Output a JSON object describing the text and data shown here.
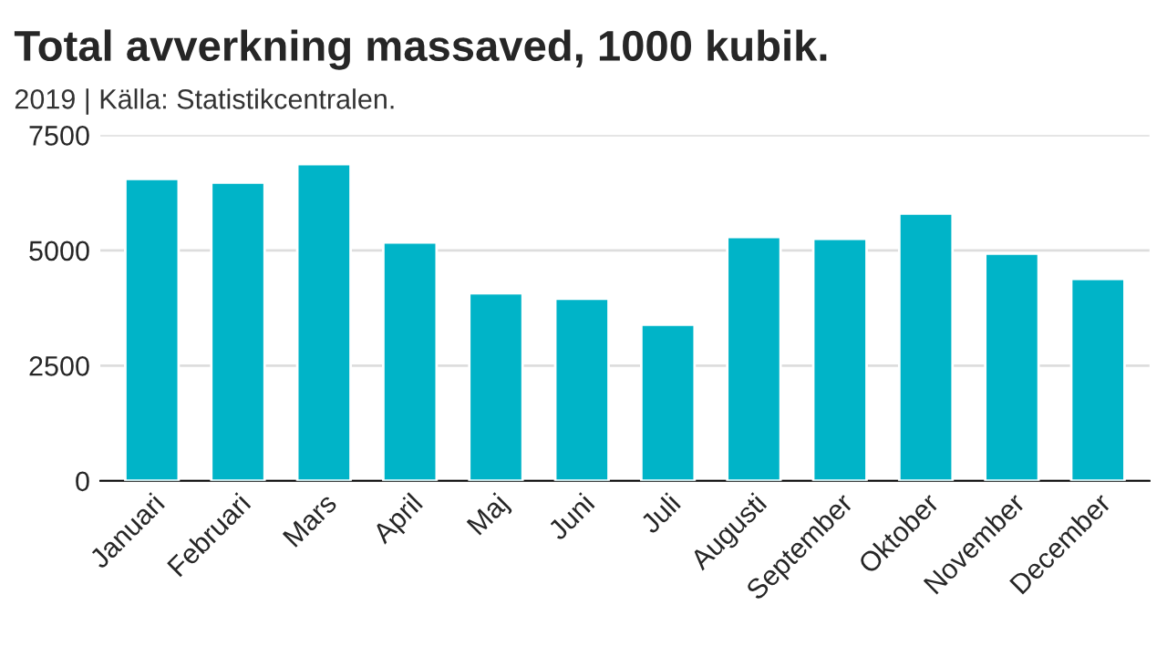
{
  "chart_data": {
    "type": "bar",
    "title": "Total avverkning massaved, 1000 kubik.",
    "subtitle": "2019 | Källa: Statistikcentralen.",
    "categories": [
      "Januari",
      "Februari",
      "Mars",
      "April",
      "Maj",
      "Juni",
      "Juli",
      "Augusti",
      "September",
      "Oktober",
      "November",
      "December"
    ],
    "values": [
      6550,
      6470,
      6870,
      5170,
      4070,
      3950,
      3390,
      5290,
      5250,
      5800,
      4930,
      4380
    ],
    "color": "#00b4c8",
    "ylim": [
      0,
      7500
    ],
    "yticks": [
      0,
      2500,
      5000,
      7500
    ],
    "grid": "y"
  }
}
